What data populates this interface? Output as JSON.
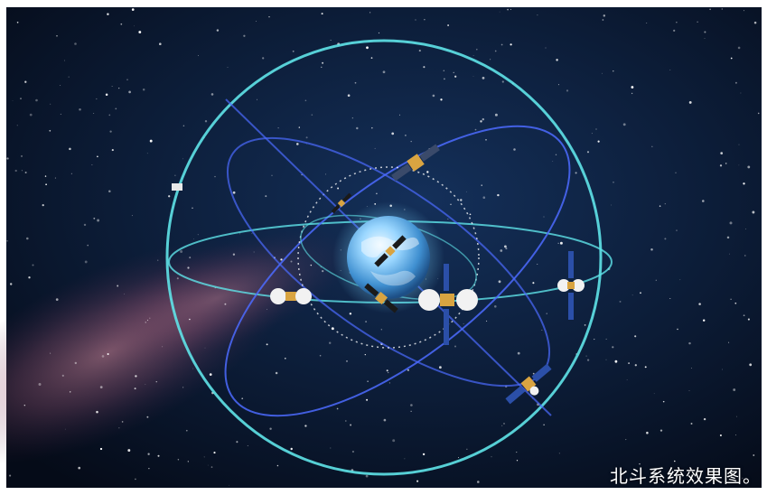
{
  "caption": "北斗系统效果图。",
  "colors": {
    "space": "#0b1a33",
    "milky_way": "#c86e87",
    "orbit_outer": "#5fe3e8",
    "orbit_blue": "#4c6bff",
    "earth": "#8fd3ff",
    "satellite_body": "#d9a441",
    "solar_panel": "#2b4fa8"
  }
}
